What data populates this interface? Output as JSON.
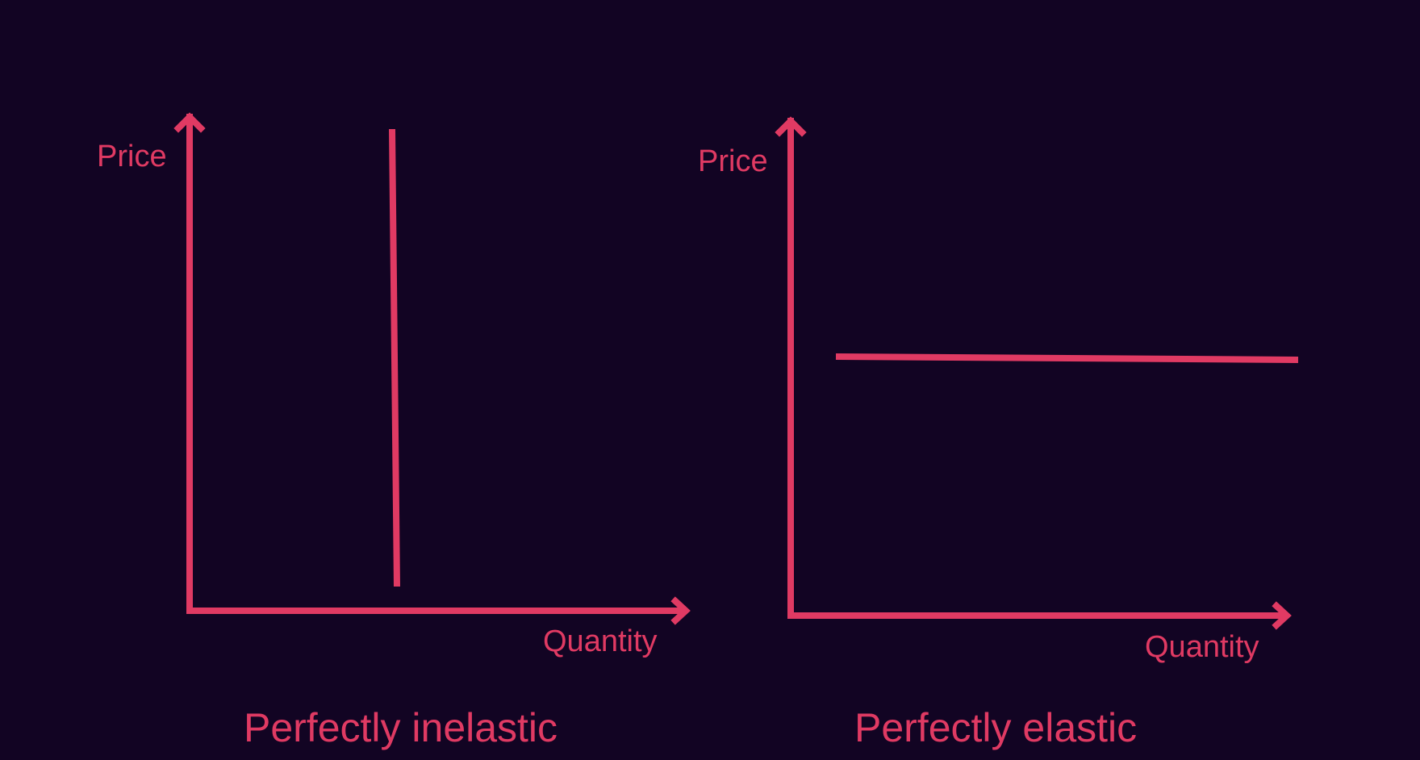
{
  "colors": {
    "background": "#120423",
    "accent": "#e03a63"
  },
  "diagrams": [
    {
      "name": "perfectly-inelastic",
      "y_axis_label": "Price",
      "x_axis_label": "Quantity",
      "caption": "Perfectly inelastic",
      "line_orientation": "vertical"
    },
    {
      "name": "perfectly-elastic",
      "y_axis_label": "Price",
      "x_axis_label": "Quantity",
      "caption": "Perfectly elastic",
      "line_orientation": "horizontal"
    }
  ]
}
